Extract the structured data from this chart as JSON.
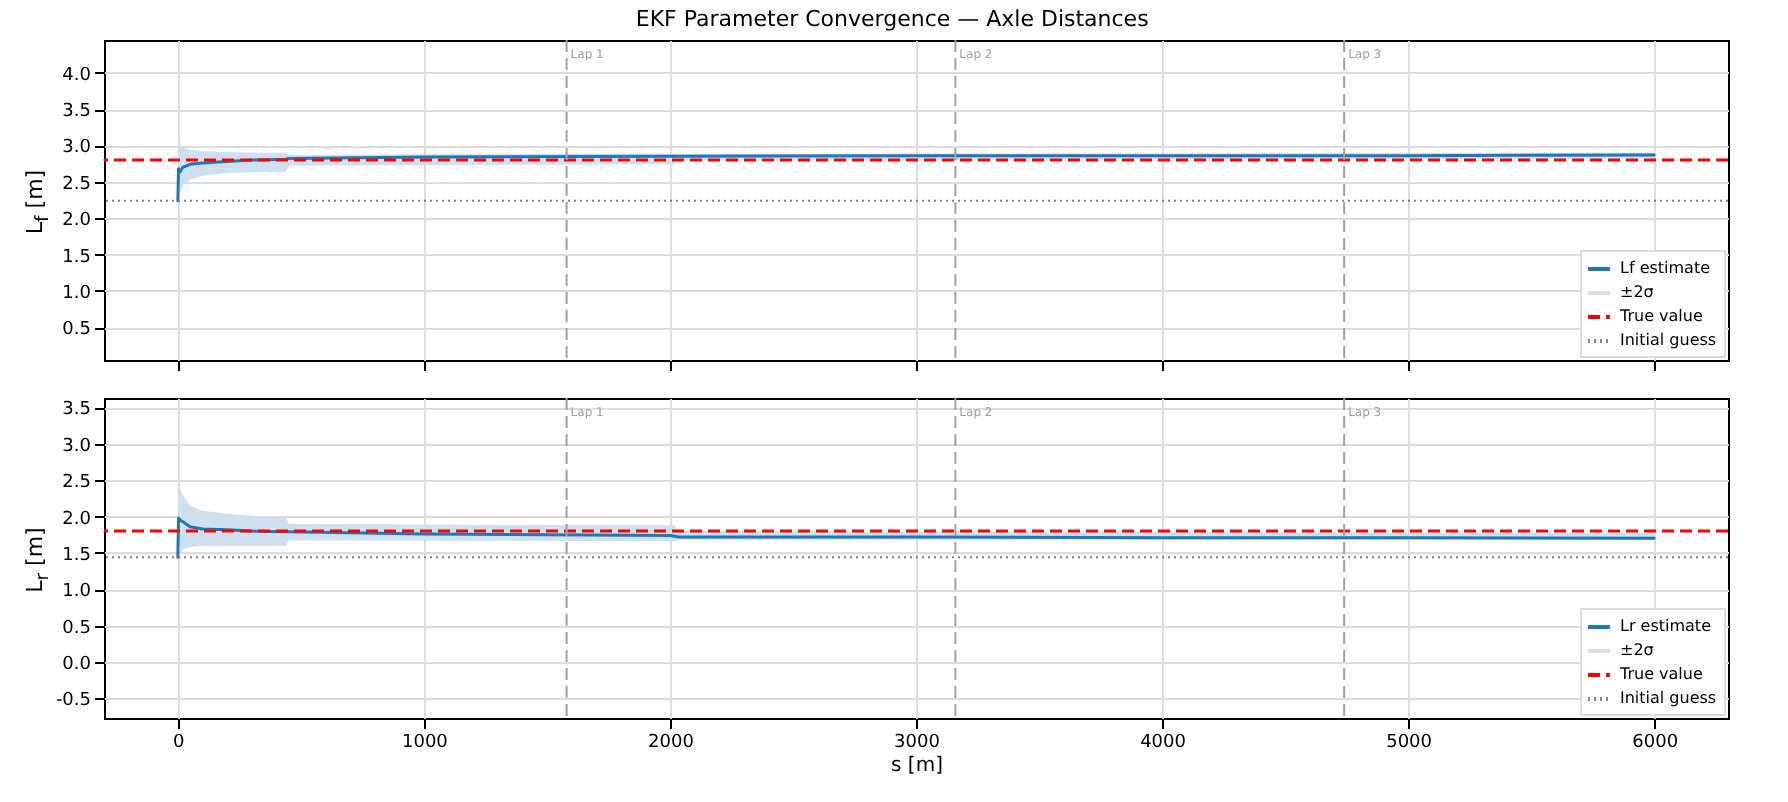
{
  "chart_data": [
    {
      "type": "line",
      "title": "EKF Parameter Convergence — Axle Distances",
      "ylabel": "L$_{f}$ [m]",
      "xlim": [
        -300,
        6300
      ],
      "xticks": [
        0,
        1000,
        2000,
        3000,
        4000,
        5000,
        6000
      ],
      "ylim": [
        0.05,
        4.45
      ],
      "yticks": [
        0.5,
        {
          "value": 1,
          "label": "1.0"
        },
        1.5,
        {
          "value": 2,
          "label": "2.0"
        },
        2.5,
        {
          "value": 3,
          "label": "3.0"
        },
        3.5,
        {
          "value": 4,
          "label": "4.0"
        }
      ],
      "tick_labels": "y",
      "grid": true,
      "legend": "bottom right",
      "annotations": [
        "±2σ"
      ],
      "series": [
        {
          "name": "Lf estimate",
          "color": "#1f77b4",
          "line_style": "solid",
          "x": [
            0,
            3,
            10,
            20,
            50,
            100,
            200,
            300,
            440,
            450,
            1000,
            2000,
            2020,
            2030,
            3000,
            4000,
            5000,
            6000
          ],
          "values": [
            2.24,
            2.68,
            2.64,
            2.7,
            2.74,
            2.76,
            2.78,
            2.8,
            2.81,
            2.82,
            2.84,
            2.85,
            2.85,
            2.85,
            2.86,
            2.86,
            2.86,
            2.87
          ],
          "lower": [
            2.2,
            2.28,
            2.35,
            2.45,
            2.53,
            2.58,
            2.62,
            2.63,
            2.64,
            2.72,
            2.73,
            2.74,
            2.74,
            2.8,
            2.8,
            2.81,
            2.81,
            2.82
          ],
          "upper": [
            3.1,
            3.06,
            3.02,
            2.97,
            2.94,
            2.92,
            2.91,
            2.9,
            2.9,
            2.87,
            2.88,
            2.89,
            2.89,
            2.88,
            2.89,
            2.89,
            2.9,
            2.9
          ]
        }
      ],
      "ref_lines": [
        {
          "axis": "y",
          "value": 2.8,
          "label": "True value",
          "color": "#ff0000",
          "line_style": "dashed"
        },
        {
          "axis": "y",
          "value": 2.24,
          "label": "Initial guess",
          "color": "#808080",
          "line_style": "dotted"
        },
        {
          "axis": "x",
          "value": 1580,
          "label": "Lap 1",
          "color": "#a0a0a0",
          "line_style": "dashed"
        },
        {
          "axis": "x",
          "value": 3160,
          "label": "Lap 2",
          "color": "#a0a0a0",
          "line_style": "dashed"
        },
        {
          "axis": "x",
          "value": 4740,
          "label": "Lap 3",
          "color": "#a0a0a0",
          "line_style": "dashed"
        }
      ]
    },
    {
      "type": "line",
      "xlabel": "s [m]",
      "ylabel": "L$_{r}$ [m]",
      "xlim": [
        -300,
        6300
      ],
      "xticks": [
        0,
        1000,
        2000,
        3000,
        4000,
        5000,
        6000
      ],
      "ylim": [
        -0.77,
        3.63
      ],
      "yticks": [
        -0.5,
        {
          "value": 0,
          "label": "0.0"
        },
        0.5,
        {
          "value": 1,
          "label": "1.0"
        },
        1.5,
        {
          "value": 2,
          "label": "2.0"
        },
        2.5,
        {
          "value": 3,
          "label": "3.0"
        },
        3.5
      ],
      "grid": true,
      "legend": "bottom right",
      "annotations": [
        "±2σ"
      ],
      "series": [
        {
          "name": "Lr estimate",
          "color": "#1f77b4",
          "line_style": "solid",
          "x": [
            0,
            3,
            10,
            20,
            50,
            100,
            200,
            300,
            440,
            450,
            1000,
            2000,
            2020,
            2030,
            3000,
            4000,
            5000,
            6000
          ],
          "values": [
            1.44,
            1.98,
            1.95,
            1.93,
            1.86,
            1.83,
            1.82,
            1.8,
            1.79,
            1.79,
            1.76,
            1.74,
            1.73,
            1.72,
            1.72,
            1.71,
            1.71,
            1.7
          ],
          "lower": [
            1.45,
            1.48,
            1.5,
            1.55,
            1.58,
            1.6,
            1.6,
            1.6,
            1.6,
            1.67,
            1.67,
            1.66,
            1.66,
            1.68,
            1.68,
            1.68,
            1.68,
            1.68
          ],
          "upper": [
            2.45,
            2.42,
            2.38,
            2.3,
            2.15,
            2.08,
            2.04,
            2.01,
            1.99,
            1.9,
            1.89,
            1.88,
            1.88,
            1.8,
            1.79,
            1.79,
            1.78,
            1.78
          ]
        }
      ],
      "ref_lines": [
        {
          "axis": "y",
          "value": 1.8,
          "label": "True value",
          "color": "#ff0000",
          "line_style": "dashed"
        },
        {
          "axis": "y",
          "value": 1.44,
          "label": "Initial guess",
          "color": "#808080",
          "line_style": "dotted"
        },
        {
          "axis": "x",
          "value": 1580,
          "label": "Lap 1",
          "color": "#a0a0a0",
          "line_style": "dashed"
        },
        {
          "axis": "x",
          "value": 3160,
          "label": "Lap 2",
          "color": "#a0a0a0",
          "line_style": "dashed"
        },
        {
          "axis": "x",
          "value": 4740,
          "label": "Lap 3",
          "color": "#a0a0a0",
          "line_style": "dashed"
        }
      ]
    }
  ]
}
